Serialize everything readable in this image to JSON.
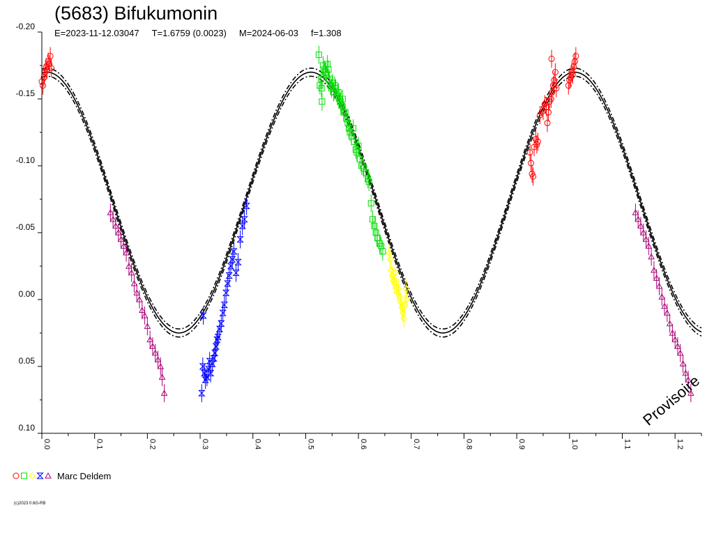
{
  "title": "(5683) Bifukumonin",
  "subtitle": {
    "epoch": "E=2023-11-12.03047",
    "period": "T=1.6759 (0.0023)",
    "middate": "M=2024-06-03",
    "fourier": "f=1.308"
  },
  "watermark": "Provisoire",
  "legend": {
    "observer": "Marc Deldem",
    "symbols": [
      "circle",
      "square",
      "diamond",
      "hourglass",
      "triangle"
    ]
  },
  "copyright": "(c)2023 0.6G-RB",
  "chart_data": {
    "type": "scatter",
    "xlim": [
      0,
      1.25
    ],
    "ylim": [
      0.1,
      -0.2
    ],
    "y_inverted": true,
    "x_ticks": [
      "0.0",
      "0.1",
      "0.2",
      "0.3",
      "0.4",
      "0.5",
      "0.6",
      "0.7",
      "0.8",
      "0.9",
      "1.0",
      "1.1",
      "1.2"
    ],
    "y_ticks": [
      "-0.20",
      "-0.15",
      "-0.10",
      "-0.05",
      "0.00",
      "0.05",
      "0.10"
    ],
    "fit_curve": {
      "amplitude": 0.0975,
      "offset": -0.0725,
      "phase_of_max": 0.01,
      "period_phase": 0.5,
      "band": 0.003
    },
    "series": [
      {
        "symbol": "circle",
        "color": "#ff0000",
        "points": [
          [
            0.0,
            -0.163
          ],
          [
            0.002,
            -0.16
          ],
          [
            0.004,
            -0.166
          ],
          [
            0.006,
            -0.17
          ],
          [
            0.008,
            -0.174
          ],
          [
            0.01,
            -0.172
          ],
          [
            0.012,
            -0.178
          ],
          [
            0.014,
            -0.176
          ],
          [
            0.016,
            -0.182
          ],
          [
            0.018,
            -0.173
          ],
          [
            0.925,
            -0.11
          ],
          [
            0.927,
            -0.102
          ],
          [
            0.929,
            -0.094
          ],
          [
            0.931,
            -0.092
          ],
          [
            0.933,
            -0.114
          ],
          [
            0.936,
            -0.12
          ],
          [
            0.938,
            -0.116
          ],
          [
            0.94,
            -0.118
          ],
          [
            0.944,
            -0.138
          ],
          [
            0.95,
            -0.141
          ],
          [
            0.953,
            -0.146
          ],
          [
            0.956,
            -0.144
          ],
          [
            0.958,
            -0.132
          ],
          [
            0.96,
            -0.14
          ],
          [
            0.962,
            -0.148
          ],
          [
            0.965,
            -0.15
          ],
          [
            0.967,
            -0.155
          ],
          [
            0.969,
            -0.16
          ],
          [
            0.971,
            -0.164
          ],
          [
            0.973,
            -0.17
          ],
          [
            0.966,
            -0.18
          ],
          [
            0.975,
            -0.158
          ],
          [
            0.998,
            -0.16
          ],
          [
            1.0,
            -0.164
          ],
          [
            1.002,
            -0.166
          ],
          [
            1.004,
            -0.17
          ],
          [
            1.006,
            -0.168
          ],
          [
            1.008,
            -0.174
          ],
          [
            1.01,
            -0.178
          ],
          [
            1.012,
            -0.182
          ]
        ]
      },
      {
        "symbol": "square",
        "color": "#00dd00",
        "points": [
          [
            0.525,
            -0.183
          ],
          [
            0.527,
            -0.16
          ],
          [
            0.529,
            -0.165
          ],
          [
            0.53,
            -0.158
          ],
          [
            0.531,
            -0.148
          ],
          [
            0.533,
            -0.175
          ],
          [
            0.535,
            -0.172
          ],
          [
            0.537,
            -0.17
          ],
          [
            0.539,
            -0.168
          ],
          [
            0.541,
            -0.176
          ],
          [
            0.543,
            -0.172
          ],
          [
            0.545,
            -0.165
          ],
          [
            0.547,
            -0.16
          ],
          [
            0.549,
            -0.158
          ],
          [
            0.551,
            -0.162
          ],
          [
            0.553,
            -0.155
          ],
          [
            0.555,
            -0.16
          ],
          [
            0.557,
            -0.158
          ],
          [
            0.56,
            -0.152
          ],
          [
            0.562,
            -0.155
          ],
          [
            0.564,
            -0.15
          ],
          [
            0.566,
            -0.148
          ],
          [
            0.568,
            -0.145
          ],
          [
            0.57,
            -0.15
          ],
          [
            0.572,
            -0.14
          ],
          [
            0.575,
            -0.14
          ],
          [
            0.578,
            -0.135
          ],
          [
            0.58,
            -0.132
          ],
          [
            0.582,
            -0.128
          ],
          [
            0.584,
            -0.125
          ],
          [
            0.587,
            -0.122
          ],
          [
            0.59,
            -0.128
          ],
          [
            0.592,
            -0.118
          ],
          [
            0.595,
            -0.112
          ],
          [
            0.597,
            -0.11
          ],
          [
            0.6,
            -0.115
          ],
          [
            0.603,
            -0.105
          ],
          [
            0.606,
            -0.1
          ],
          [
            0.61,
            -0.098
          ],
          [
            0.614,
            -0.095
          ],
          [
            0.618,
            -0.09
          ],
          [
            0.62,
            -0.088
          ],
          [
            0.624,
            -0.072
          ],
          [
            0.627,
            -0.06
          ],
          [
            0.63,
            -0.055
          ],
          [
            0.633,
            -0.05
          ],
          [
            0.636,
            -0.046
          ],
          [
            0.64,
            -0.042
          ],
          [
            0.643,
            -0.04
          ],
          [
            0.646,
            -0.036
          ]
        ]
      },
      {
        "symbol": "diamond",
        "color": "#ffff00",
        "points": [
          [
            0.658,
            -0.035
          ],
          [
            0.66,
            -0.03
          ],
          [
            0.662,
            -0.022
          ],
          [
            0.664,
            -0.018
          ],
          [
            0.666,
            -0.014
          ],
          [
            0.668,
            -0.012
          ],
          [
            0.67,
            -0.02
          ],
          [
            0.672,
            -0.01
          ],
          [
            0.674,
            -0.005
          ],
          [
            0.676,
            -0.008
          ],
          [
            0.678,
            -0.002
          ],
          [
            0.68,
            0.002
          ],
          [
            0.682,
            0.006
          ],
          [
            0.684,
            0.01
          ],
          [
            0.686,
            0.014
          ],
          [
            0.688,
            0.004
          ],
          [
            0.69,
            -0.008
          ],
          [
            0.692,
            0.0
          ]
        ]
      },
      {
        "symbol": "hourglass",
        "color": "#0000ff",
        "points": [
          [
            0.303,
            0.07
          ],
          [
            0.305,
            0.05
          ],
          [
            0.306,
            0.012
          ],
          [
            0.308,
            0.055
          ],
          [
            0.31,
            0.06
          ],
          [
            0.313,
            0.058
          ],
          [
            0.316,
            0.052
          ],
          [
            0.318,
            0.046
          ],
          [
            0.32,
            0.055
          ],
          [
            0.323,
            0.048
          ],
          [
            0.326,
            0.044
          ],
          [
            0.328,
            0.04
          ],
          [
            0.33,
            0.035
          ],
          [
            0.332,
            0.03
          ],
          [
            0.334,
            0.028
          ],
          [
            0.337,
            0.022
          ],
          [
            0.34,
            0.018
          ],
          [
            0.343,
            0.01
          ],
          [
            0.346,
            0.004
          ],
          [
            0.349,
            -0.005
          ],
          [
            0.352,
            -0.012
          ],
          [
            0.355,
            -0.018
          ],
          [
            0.358,
            -0.025
          ],
          [
            0.361,
            -0.03
          ],
          [
            0.364,
            -0.036
          ],
          [
            0.368,
            -0.02
          ],
          [
            0.372,
            -0.028
          ],
          [
            0.376,
            -0.045
          ],
          [
            0.38,
            -0.055
          ],
          [
            0.384,
            -0.06
          ],
          [
            0.388,
            -0.07
          ]
        ]
      },
      {
        "symbol": "triangle",
        "color": "#aa0077",
        "points": [
          [
            0.13,
            -0.065
          ],
          [
            0.135,
            -0.06
          ],
          [
            0.14,
            -0.055
          ],
          [
            0.145,
            -0.05
          ],
          [
            0.15,
            -0.045
          ],
          [
            0.155,
            -0.04
          ],
          [
            0.16,
            -0.035
          ],
          [
            0.165,
            -0.025
          ],
          [
            0.17,
            -0.02
          ],
          [
            0.175,
            -0.012
          ],
          [
            0.18,
            -0.005
          ],
          [
            0.185,
            0.0
          ],
          [
            0.19,
            0.008
          ],
          [
            0.195,
            0.012
          ],
          [
            0.2,
            0.02
          ],
          [
            0.205,
            0.03
          ],
          [
            0.21,
            0.035
          ],
          [
            0.215,
            0.04
          ],
          [
            0.22,
            0.045
          ],
          [
            0.225,
            0.05
          ],
          [
            0.228,
            0.058
          ],
          [
            0.232,
            0.07
          ],
          [
            1.125,
            -0.065
          ],
          [
            1.13,
            -0.06
          ],
          [
            1.135,
            -0.055
          ],
          [
            1.14,
            -0.05
          ],
          [
            1.145,
            -0.045
          ],
          [
            1.15,
            -0.04
          ],
          [
            1.155,
            -0.032
          ],
          [
            1.16,
            -0.022
          ],
          [
            1.165,
            -0.016
          ],
          [
            1.17,
            -0.01
          ],
          [
            1.175,
            -0.002
          ],
          [
            1.18,
            0.005
          ],
          [
            1.185,
            0.01
          ],
          [
            1.19,
            0.018
          ],
          [
            1.195,
            0.025
          ],
          [
            1.2,
            0.03
          ],
          [
            1.205,
            0.035
          ],
          [
            1.21,
            0.04
          ],
          [
            1.215,
            0.048
          ],
          [
            1.22,
            0.055
          ],
          [
            1.225,
            0.06
          ],
          [
            1.23,
            0.07
          ]
        ]
      }
    ]
  }
}
